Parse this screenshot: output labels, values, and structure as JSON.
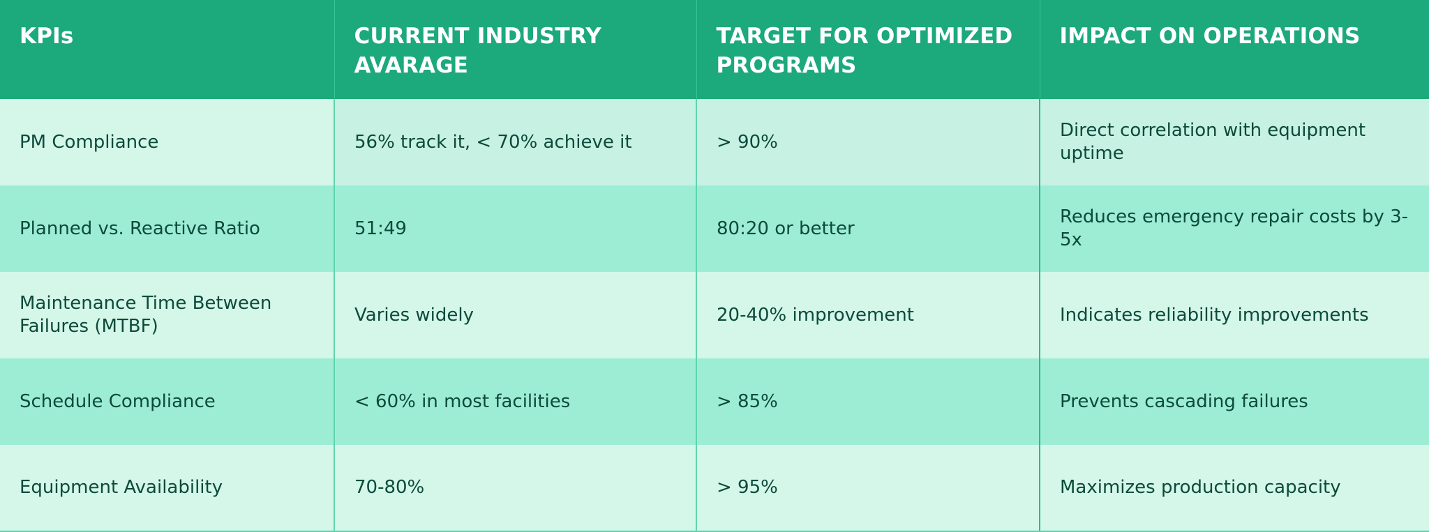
{
  "table": {
    "headers": [
      "KPIs",
      "CURRENT INDUSTRY AVARAGE",
      "TARGET FOR OPTIMIZED PROGRAMS",
      "IMPACT ON OPERATIONS"
    ],
    "rows": [
      [
        "PM Compliance",
        "56% track it, < 70% achieve it",
        "> 90%",
        "Direct correlation with equipment uptime"
      ],
      [
        "Planned vs. Reactive Ratio",
        "51:49",
        "80:20 or better",
        "Reduces emergency repair costs by 3-5x"
      ],
      [
        "Maintenance Time Between Failures (MTBF)",
        "Varies widely",
        "20-40% improvement",
        "Indicates reliability improvements"
      ],
      [
        "Schedule Compliance",
        "< 60% in most facilities",
        "> 85%",
        "Prevents cascading failures"
      ],
      [
        "Equipment Availability",
        "70-80%",
        "> 95%",
        "Maximizes production capacity"
      ]
    ]
  },
  "colors": {
    "header_bg": "#1ca97c",
    "header_text": "#ffffff",
    "row_light": "#d4f7ea",
    "row_dark": "#9dedd4",
    "cell_text": "#0d4a3a"
  }
}
